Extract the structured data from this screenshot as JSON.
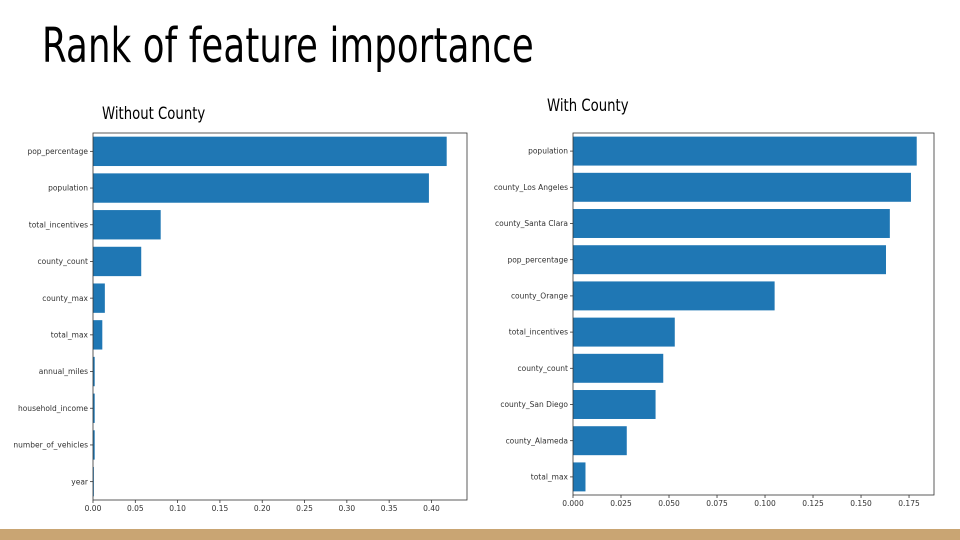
{
  "slide": {
    "title": "Rank of feature importance"
  },
  "colors": {
    "bar": "#1f77b4",
    "footer": "#c9a573"
  },
  "chart_data": [
    {
      "type": "bar",
      "orientation": "horizontal",
      "title": "Without County",
      "categories": [
        "pop_percentage",
        "population",
        "total_incentives",
        "county_count",
        "county_max",
        "total_max",
        "annual_miles",
        "household_income",
        "number_of_vehicles",
        "year"
      ],
      "values": [
        0.418,
        0.397,
        0.08,
        0.057,
        0.014,
        0.011,
        0.002,
        0.002,
        0.002,
        0.001
      ],
      "xlim": [
        0,
        0.442
      ],
      "xticks": [
        0.0,
        0.05,
        0.1,
        0.15,
        0.2,
        0.25,
        0.3,
        0.35,
        0.4
      ],
      "xtick_labels": [
        "0.00",
        "0.05",
        "0.10",
        "0.15",
        "0.20",
        "0.25",
        "0.30",
        "0.35",
        "0.40"
      ],
      "grid": false
    },
    {
      "type": "bar",
      "orientation": "horizontal",
      "title": "With County",
      "categories": [
        "population",
        "county_Los Angeles",
        "county_Santa Clara",
        "pop_percentage",
        "county_Orange",
        "total_incentives",
        "county_count",
        "county_San Diego",
        "county_Alameda",
        "total_max"
      ],
      "values": [
        0.179,
        0.176,
        0.165,
        0.163,
        0.105,
        0.053,
        0.047,
        0.043,
        0.028,
        0.0065
      ],
      "xlim": [
        0,
        0.188
      ],
      "xticks": [
        0.0,
        0.025,
        0.05,
        0.075,
        0.1,
        0.125,
        0.15,
        0.175
      ],
      "xtick_labels": [
        "0.000",
        "0.025",
        "0.050",
        "0.075",
        "0.100",
        "0.125",
        "0.150",
        "0.175"
      ],
      "grid": false
    }
  ]
}
